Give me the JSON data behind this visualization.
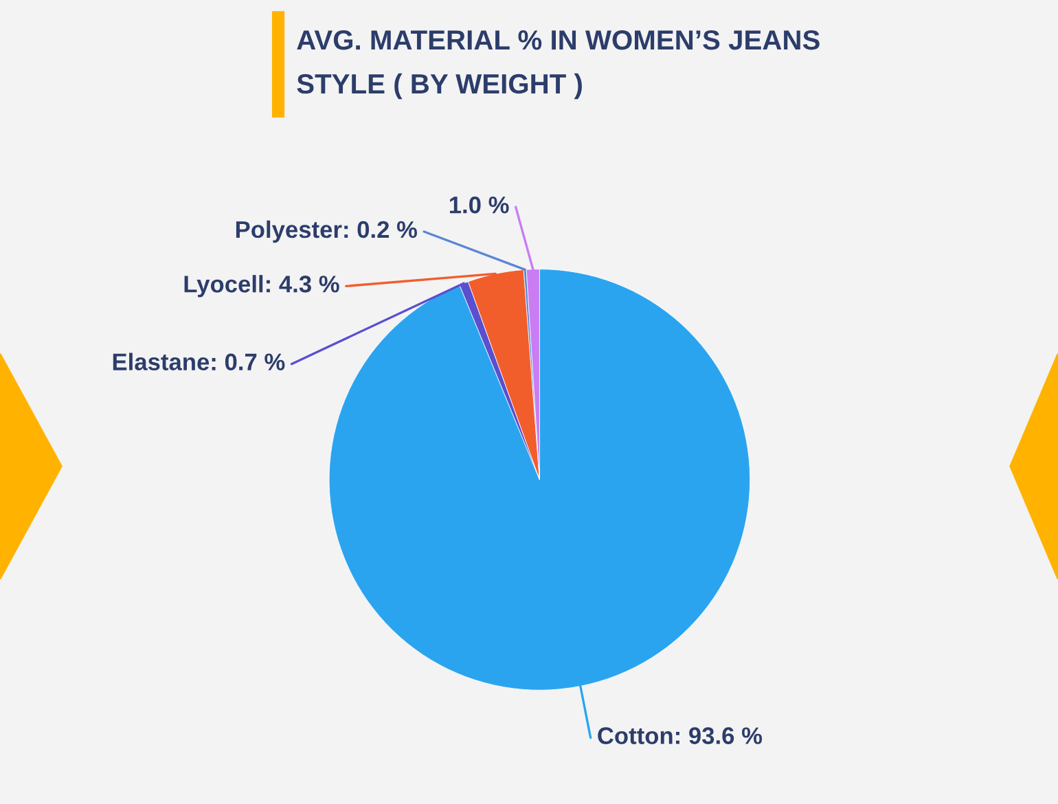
{
  "chart_data": {
    "type": "pie",
    "title": "AVG. MATERIAL % IN WOMEN’S JEANS\nSTYLE ( BY WEIGHT )",
    "categories": [
      "Cotton",
      "Elastane",
      "Lyocell",
      "Polyester",
      null
    ],
    "values": [
      93.6,
      0.7,
      4.3,
      0.2,
      1.0
    ],
    "colors": [
      "#2ba4ef",
      "#5a4fcf",
      "#f25d2c",
      "#5b86d6",
      "#c97cf4"
    ],
    "value_labels": [
      "93.6 %",
      "0.7 %",
      "4.3 %",
      "0.2 %",
      "1.0 %"
    ],
    "legend": false
  }
}
